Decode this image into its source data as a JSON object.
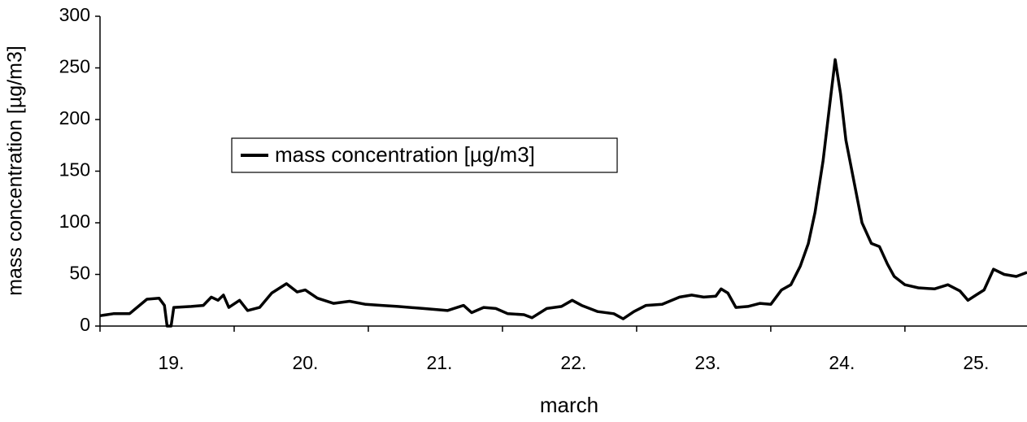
{
  "chart_data": {
    "type": "line",
    "xlabel": "march",
    "ylabel": "mass concentration [µg/m3]",
    "x": [
      19.0,
      19.1,
      19.22,
      19.35,
      19.44,
      19.48,
      19.5,
      19.53,
      19.55,
      19.68,
      19.77,
      19.83,
      19.88,
      19.92,
      19.96,
      20.04,
      20.1,
      20.19,
      20.28,
      20.39,
      20.47,
      20.53,
      20.62,
      20.74,
      20.86,
      20.98,
      21.1,
      21.22,
      21.41,
      21.59,
      21.71,
      21.77,
      21.86,
      21.95,
      22.04,
      22.16,
      22.22,
      22.33,
      22.44,
      22.52,
      22.59,
      22.71,
      22.83,
      22.9,
      22.98,
      23.07,
      23.19,
      23.32,
      23.41,
      23.5,
      23.59,
      23.63,
      23.68,
      23.74,
      23.83,
      23.92,
      24.0,
      24.08,
      24.15,
      24.22,
      24.28,
      24.33,
      24.39,
      24.44,
      24.48,
      24.52,
      24.56,
      24.62,
      24.68,
      24.75,
      24.81,
      24.87,
      24.92,
      25.0,
      25.1,
      25.22,
      25.32,
      25.41,
      25.47,
      25.53,
      25.59,
      25.66,
      25.74,
      25.83,
      25.91
    ],
    "series": [
      {
        "name": "mass concentration [µg/m3]",
        "color": "#000000",
        "values": [
          10,
          12,
          12,
          26,
          27,
          20,
          0,
          0,
          18,
          19,
          20,
          28,
          25,
          30,
          18,
          25,
          15,
          18,
          32,
          41,
          33,
          35,
          27,
          22,
          24,
          21,
          20,
          19,
          17,
          15,
          20,
          13,
          18,
          17,
          12,
          11,
          8,
          17,
          19,
          25,
          20,
          14,
          12,
          7,
          14,
          20,
          21,
          28,
          30,
          28,
          29,
          36,
          32,
          18,
          19,
          22,
          21,
          35,
          40,
          58,
          80,
          110,
          160,
          215,
          258,
          225,
          180,
          140,
          100,
          80,
          77,
          60,
          48,
          40,
          37,
          36,
          40,
          34,
          25,
          30,
          35,
          55,
          50,
          48,
          52
        ]
      }
    ],
    "xlim": [
      19,
      25.91
    ],
    "xticks": [
      {
        "value": 19.5,
        "label": "19."
      },
      {
        "value": 20.5,
        "label": "20."
      },
      {
        "value": 21.5,
        "label": "21."
      },
      {
        "value": 22.5,
        "label": "22."
      },
      {
        "value": 23.5,
        "label": "23."
      },
      {
        "value": 24.5,
        "label": "24."
      },
      {
        "value": 25.5,
        "label": "25."
      }
    ],
    "xtick_marks": [
      19,
      20,
      21,
      22,
      23,
      24,
      25
    ],
    "ylim": [
      0,
      300
    ],
    "yticks": [
      0,
      50,
      100,
      150,
      200,
      250,
      300
    ],
    "grid": false
  }
}
